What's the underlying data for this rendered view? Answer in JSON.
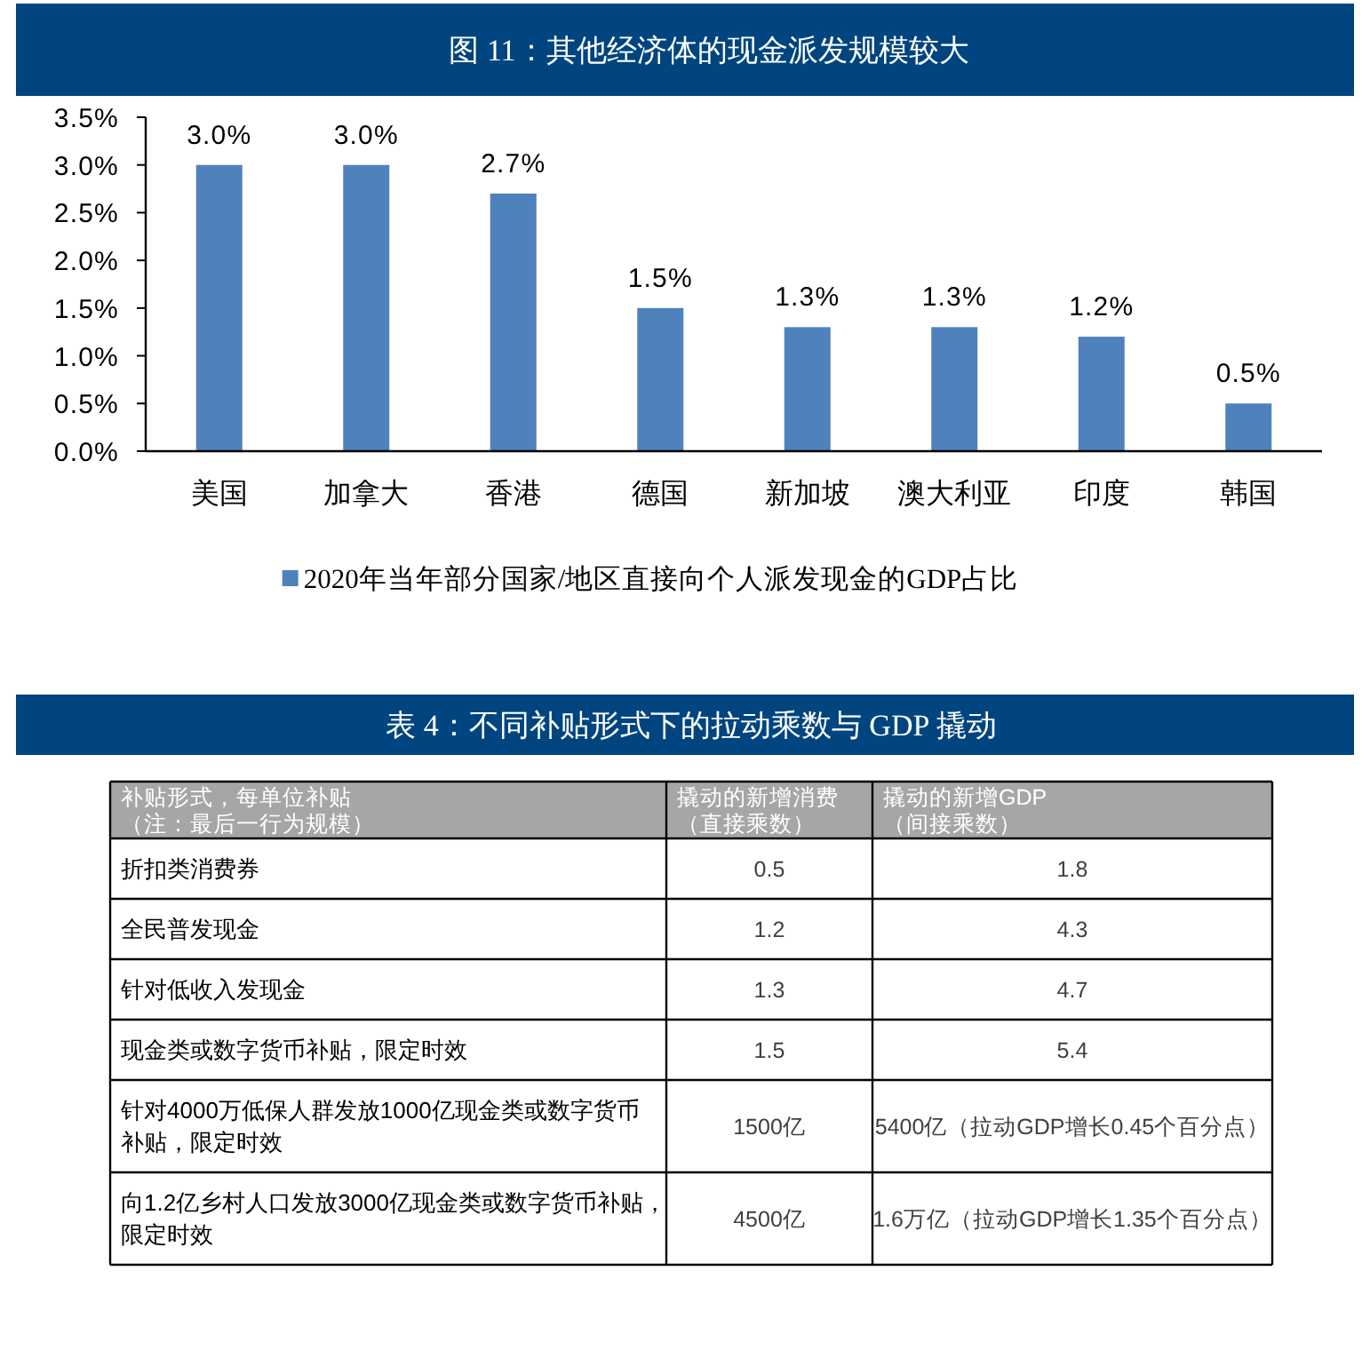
{
  "chart_data": [
    {
      "type": "bar",
      "title": "图 11：其他经济体的现金派发规模较大",
      "categories": [
        "美国",
        "加拿大",
        "香港",
        "德国",
        "新加坡",
        "澳大利亚",
        "印度",
        "韩国"
      ],
      "series": [
        {
          "name": "2020年当年部分国家/地区直接向个人派发现金的GDP占比",
          "color": "#4f81bd",
          "values": [
            3.0,
            3.0,
            2.7,
            1.5,
            1.3,
            1.3,
            1.2,
            0.5
          ],
          "value_labels": [
            "3.0%",
            "3.0%",
            "2.7%",
            "1.5%",
            "1.3%",
            "1.3%",
            "1.2%",
            "0.5%"
          ]
        }
      ],
      "ylim": [
        0,
        3.5
      ],
      "yticks": [
        {
          "value": 0,
          "label": "0.0%"
        },
        {
          "value": 0.5,
          "label": "0.5%"
        },
        {
          "value": 1.0,
          "label": "1.0%"
        },
        {
          "value": 1.5,
          "label": "1.5%"
        },
        {
          "value": 2.0,
          "label": "2.0%"
        },
        {
          "value": 2.5,
          "label": "2.5%"
        },
        {
          "value": 3.0,
          "label": "3.0%"
        },
        {
          "value": 3.5,
          "label": "3.5%"
        }
      ],
      "legend": "bottom",
      "grid": false
    },
    {
      "type": "other",
      "title": "表 4：不同补贴形式下的拉动乘数与 GDP 撬动",
      "categories": [
        "补贴形式，每单位补贴（注：最后一行为规模）",
        "撬动的新增消费（直接乘数）",
        "撬动的新增GDP（间接乘数）"
      ],
      "annotations": [
        "折扣类消费券",
        "0.5",
        "1.8",
        "全民普发现金",
        "1.2",
        "4.3",
        "针对低收入发现金",
        "1.3",
        "4.7",
        "现金类或数字货币补贴，限定时效",
        "1.5",
        "5.4",
        "针对4000万低保人群发放1000亿现金类或数字货币补贴，限定时效",
        "1500亿",
        "5400亿（拉动GDP增长0.45个百分点）",
        "向1.2亿乡村人口发放3000亿现金类或数字货币补贴，限定时效",
        "4500亿",
        "1.6万亿（拉动GDP增长1.35个百分点）"
      ]
    }
  ]
}
